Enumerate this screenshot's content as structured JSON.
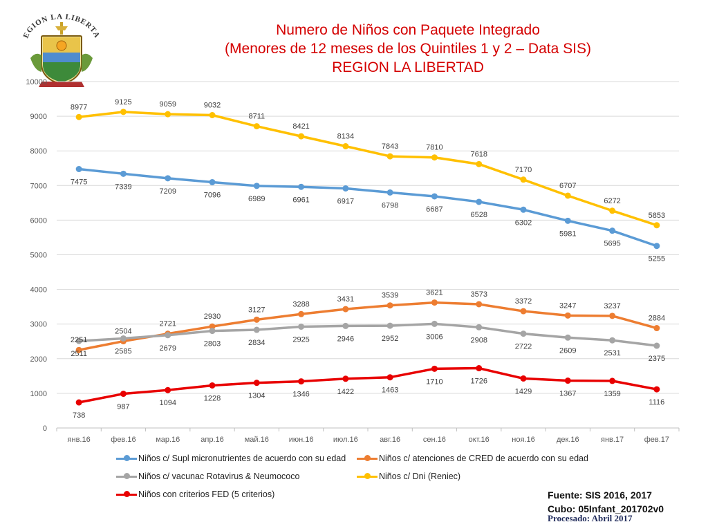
{
  "title": {
    "line1": "Numero de Niños con Paquete Integrado",
    "line2": "(Menores de 12 meses de los Quintiles 1 y 2 – Data SIS)",
    "line3": "REGION LA LIBERTAD"
  },
  "logo": {
    "text": "REGION LA LIBERTAD"
  },
  "colors": {
    "title": "#d40000",
    "blue": "#5b9bd5",
    "orange": "#ed7d31",
    "gray": "#a5a5a5",
    "yellow": "#ffc000",
    "red": "#e80000"
  },
  "chart_data": {
    "type": "line",
    "title": "Numero de Niños con Paquete Integrado",
    "xlabel": "",
    "ylabel": "",
    "ylim": [
      0,
      10000
    ],
    "yticks": [
      0,
      1000,
      2000,
      3000,
      4000,
      5000,
      6000,
      7000,
      8000,
      9000,
      10000
    ],
    "grid": true,
    "legend_position": "bottom",
    "categories": [
      "янв.16",
      "фев.16",
      "мар.16",
      "апр.16",
      "май.16",
      "июн.16",
      "июл.16",
      "авг.16",
      "сен.16",
      "окт.16",
      "ноя.16",
      "дек.16",
      "янв.17",
      "фев.17"
    ],
    "series": [
      {
        "name": "Niños c/ Supl micronutrientes de acuerdo con su edad",
        "color": "#5b9bd5",
        "label_pos": "below",
        "values": [
          7475,
          7339,
          7209,
          7096,
          6989,
          6961,
          6917,
          6798,
          6687,
          6528,
          6302,
          5981,
          5695,
          5255
        ]
      },
      {
        "name": "Niños c/ atenciones de CRED de acuerdo con su edad",
        "color": "#ed7d31",
        "label_pos": "above",
        "values": [
          2251,
          2504,
          2721,
          2930,
          3127,
          3288,
          3431,
          3539,
          3621,
          3573,
          3372,
          3247,
          3237,
          2884
        ]
      },
      {
        "name": "Niños c/ vacunac Rotavirus & Neumococo",
        "color": "#a5a5a5",
        "label_pos": "below",
        "values": [
          2511,
          2585,
          2679,
          2803,
          2834,
          2925,
          2946,
          2952,
          3006,
          2908,
          2722,
          2609,
          2531,
          2375
        ]
      },
      {
        "name": "Niños c/ Dni (Reniec)",
        "color": "#ffc000",
        "label_pos": "above",
        "values": [
          8977,
          9125,
          9059,
          9032,
          8711,
          8421,
          8134,
          7843,
          7810,
          7618,
          7170,
          6707,
          6272,
          5853
        ]
      },
      {
        "name": "Niños con criterios FED (5 criterios)",
        "color": "#e80000",
        "label_pos": "below",
        "values": [
          738,
          987,
          1094,
          1228,
          1304,
          1346,
          1422,
          1463,
          1710,
          1726,
          1429,
          1367,
          1359,
          1116
        ]
      }
    ]
  },
  "footer": {
    "source": "Fuente: SIS 2016, 2017",
    "cube": "Cubo:  05Infant_201702v0",
    "processed": "Procesado: Abril 2017"
  }
}
